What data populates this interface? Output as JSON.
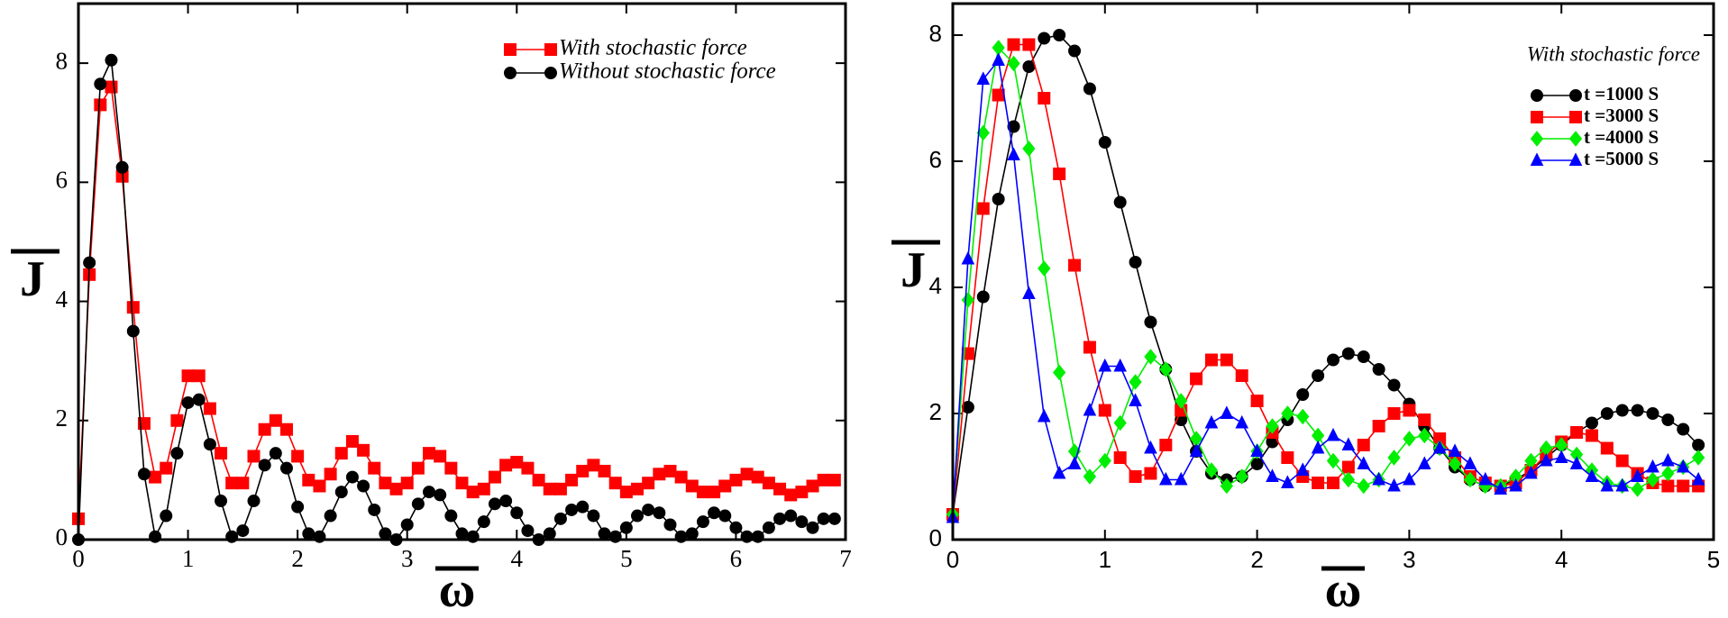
{
  "chart_data": [
    {
      "type": "line",
      "x_label": "ω",
      "y_label": "J",
      "legend": "upper right",
      "xlim": [
        0,
        7
      ],
      "ylim": [
        0,
        9
      ],
      "xticks": [
        0,
        1,
        2,
        3,
        4,
        5,
        6,
        7
      ],
      "yticks": [
        0,
        2,
        4,
        6,
        8
      ],
      "x": [
        0,
        0.1,
        0.2,
        0.3,
        0.4,
        0.5,
        0.6,
        0.7,
        0.8,
        0.9,
        1,
        1.1,
        1.2,
        1.3,
        1.4,
        1.5,
        1.6,
        1.7,
        1.8,
        1.9,
        2,
        2.1,
        2.2,
        2.3,
        2.4,
        2.5,
        2.6,
        2.7,
        2.8,
        2.9,
        3,
        3.1,
        3.2,
        3.3,
        3.4,
        3.5,
        3.6,
        3.7,
        3.8,
        3.9,
        4,
        4.1,
        4.2,
        4.3,
        4.4,
        4.5,
        4.6,
        4.7,
        4.8,
        4.9,
        5,
        5.1,
        5.2,
        5.3,
        5.4,
        5.5,
        5.6,
        5.7,
        5.8,
        5.9,
        6,
        6.1,
        6.2,
        6.3,
        6.4,
        6.5,
        6.6,
        6.7,
        6.8,
        6.9
      ],
      "series": [
        {
          "name": "With stochastic force",
          "color": "#ff0000",
          "marker": "square",
          "values": [
            0.35,
            4.45,
            7.3,
            7.6,
            6.1,
            3.9,
            1.95,
            1.05,
            1.2,
            2.0,
            2.75,
            2.75,
            2.2,
            1.45,
            0.95,
            0.95,
            1.4,
            1.85,
            2.0,
            1.85,
            1.4,
            1.0,
            0.9,
            1.1,
            1.45,
            1.65,
            1.5,
            1.2,
            0.95,
            0.85,
            0.95,
            1.2,
            1.45,
            1.4,
            1.2,
            0.95,
            0.8,
            0.85,
            1.05,
            1.25,
            1.3,
            1.2,
            1.0,
            0.85,
            0.85,
            1.0,
            1.15,
            1.25,
            1.15,
            0.95,
            0.8,
            0.85,
            0.95,
            1.1,
            1.15,
            1.05,
            0.9,
            0.8,
            0.8,
            0.9,
            1.0,
            1.1,
            1.05,
            0.95,
            0.85,
            0.75,
            0.8,
            0.9,
            1.0,
            1.0
          ]
        },
        {
          "name": "Without stochastic force",
          "color": "#000000",
          "marker": "circle",
          "values": [
            0,
            4.65,
            7.65,
            8.05,
            6.25,
            3.5,
            1.1,
            0.05,
            0.4,
            1.45,
            2.3,
            2.35,
            1.6,
            0.65,
            0.05,
            0.15,
            0.65,
            1.25,
            1.45,
            1.2,
            0.55,
            0.1,
            0.05,
            0.4,
            0.8,
            1.05,
            0.9,
            0.5,
            0.1,
            0,
            0.25,
            0.6,
            0.8,
            0.75,
            0.4,
            0.1,
            0.05,
            0.3,
            0.6,
            0.65,
            0.45,
            0.15,
            0,
            0.1,
            0.35,
            0.5,
            0.55,
            0.4,
            0.1,
            0.05,
            0.2,
            0.4,
            0.5,
            0.45,
            0.25,
            0.05,
            0.1,
            0.3,
            0.45,
            0.4,
            0.2,
            0.05,
            0.05,
            0.2,
            0.35,
            0.4,
            0.3,
            0.2,
            0.35,
            0.35
          ]
        }
      ]
    },
    {
      "type": "line",
      "x_label": "ω",
      "y_label": "J",
      "legend": "upper right",
      "annotation": "With stochastic force",
      "xlim": [
        0,
        5
      ],
      "ylim": [
        0,
        8.5
      ],
      "xticks": [
        0,
        1,
        2,
        3,
        4,
        5
      ],
      "yticks": [
        0,
        2,
        4,
        6,
        8
      ],
      "x": [
        0,
        0.1,
        0.2,
        0.3,
        0.4,
        0.5,
        0.6,
        0.7,
        0.8,
        0.9,
        1,
        1.1,
        1.2,
        1.3,
        1.4,
        1.5,
        1.6,
        1.7,
        1.8,
        1.9,
        2,
        2.1,
        2.2,
        2.3,
        2.4,
        2.5,
        2.6,
        2.7,
        2.8,
        2.9,
        3,
        3.1,
        3.2,
        3.3,
        3.4,
        3.5,
        3.6,
        3.7,
        3.8,
        3.9,
        4,
        4.1,
        4.2,
        4.3,
        4.4,
        4.5,
        4.6,
        4.7,
        4.8,
        4.9
      ],
      "series": [
        {
          "name": "t =1000 S",
          "color": "#000000",
          "marker": "circle",
          "values": [
            0.4,
            2.1,
            3.85,
            5.4,
            6.55,
            7.5,
            7.95,
            8.0,
            7.75,
            7.15,
            6.3,
            5.35,
            4.4,
            3.45,
            2.7,
            1.9,
            1.4,
            1.05,
            0.95,
            1.0,
            1.2,
            1.55,
            1.9,
            2.3,
            2.6,
            2.85,
            2.95,
            2.9,
            2.7,
            2.45,
            2.15,
            1.8,
            1.45,
            1.15,
            0.95,
            0.85,
            0.85,
            0.95,
            1.1,
            1.3,
            1.5,
            1.7,
            1.85,
            2.0,
            2.05,
            2.05,
            2.0,
            1.9,
            1.75,
            1.5
          ]
        },
        {
          "name": "t =3000 S",
          "color": "#ff0000",
          "marker": "square",
          "values": [
            0.4,
            2.95,
            5.25,
            7.05,
            7.85,
            7.85,
            7.0,
            5.8,
            4.35,
            3.05,
            2.05,
            1.3,
            1.0,
            1.05,
            1.5,
            2.05,
            2.55,
            2.85,
            2.85,
            2.6,
            2.2,
            1.7,
            1.3,
            1.0,
            0.9,
            0.9,
            1.15,
            1.5,
            1.8,
            2.0,
            2.05,
            1.9,
            1.6,
            1.3,
            1.0,
            0.9,
            0.85,
            0.9,
            1.1,
            1.35,
            1.55,
            1.7,
            1.65,
            1.45,
            1.25,
            1.05,
            0.9,
            0.85,
            0.85,
            0.85
          ]
        },
        {
          "name": "t =4000 S",
          "color": "#00ee00",
          "marker": "diamond",
          "values": [
            0.4,
            3.8,
            6.45,
            7.8,
            7.55,
            6.2,
            4.3,
            2.65,
            1.4,
            1.0,
            1.25,
            1.85,
            2.5,
            2.9,
            2.7,
            2.2,
            1.6,
            1.1,
            0.85,
            1.0,
            1.4,
            1.8,
            2.0,
            1.95,
            1.65,
            1.25,
            0.95,
            0.85,
            0.95,
            1.3,
            1.6,
            1.65,
            1.45,
            1.2,
            0.95,
            0.85,
            0.85,
            1.0,
            1.25,
            1.45,
            1.5,
            1.35,
            1.1,
            0.9,
            0.85,
            0.8,
            0.95,
            1.05,
            1.15,
            1.3
          ]
        },
        {
          "name": "t =5000 S",
          "color": "#0000ff",
          "marker": "triangle",
          "values": [
            0.35,
            4.45,
            7.3,
            7.6,
            6.1,
            3.9,
            1.95,
            1.05,
            1.2,
            2.05,
            2.75,
            2.75,
            2.2,
            1.45,
            0.95,
            0.95,
            1.4,
            1.85,
            2.0,
            1.85,
            1.4,
            1.0,
            0.9,
            1.1,
            1.45,
            1.65,
            1.5,
            1.2,
            0.95,
            0.85,
            0.95,
            1.2,
            1.45,
            1.4,
            1.2,
            0.95,
            0.8,
            0.85,
            1.05,
            1.25,
            1.3,
            1.2,
            1.0,
            0.85,
            0.85,
            1.0,
            1.15,
            1.25,
            1.15,
            0.95
          ]
        }
      ]
    }
  ]
}
